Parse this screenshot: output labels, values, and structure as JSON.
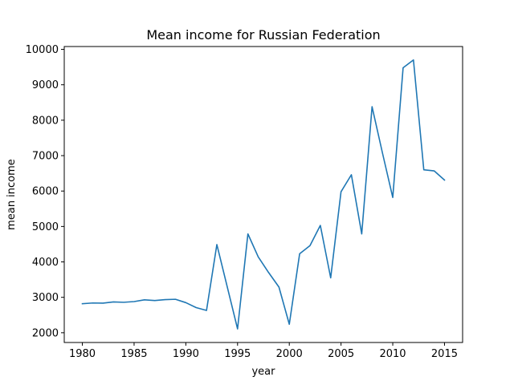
{
  "chart_data": {
    "type": "line",
    "title": "Mean income for Russian Federation",
    "xlabel": "year",
    "ylabel": "mean income",
    "xlim": [
      1978.25,
      2016.75
    ],
    "ylim": [
      1725,
      10080
    ],
    "x_ticks": [
      1980,
      1985,
      1990,
      1995,
      2000,
      2005,
      2010,
      2015
    ],
    "y_ticks": [
      2000,
      3000,
      4000,
      5000,
      6000,
      7000,
      8000,
      9000,
      10000
    ],
    "grid": false,
    "line_color": "#1f77b4",
    "series": [
      {
        "x": [
          1980,
          1981,
          1982,
          1983,
          1984,
          1985,
          1986,
          1987,
          1988,
          1989,
          1990,
          1991,
          1992,
          1993,
          1994,
          1995,
          1996,
          1997,
          1998,
          1999,
          2000,
          2001,
          2002,
          2003,
          2004,
          2005,
          2006,
          2007,
          2008,
          2009,
          2010,
          2011,
          2012,
          2013,
          2014,
          2015
        ],
        "values": [
          2820,
          2840,
          2835,
          2870,
          2860,
          2880,
          2930,
          2910,
          2935,
          2945,
          2850,
          2710,
          2630,
          4490,
          3300,
          2110,
          4790,
          4140,
          3700,
          3290,
          2240,
          4230,
          4460,
          5030,
          3550,
          5980,
          6460,
          4790,
          8380,
          7080,
          5820,
          9480,
          9700,
          6600,
          6570,
          6310
        ]
      }
    ]
  }
}
